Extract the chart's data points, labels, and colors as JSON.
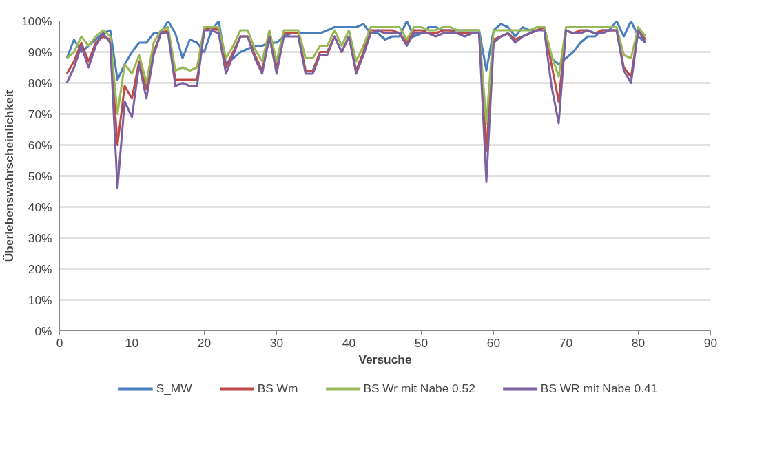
{
  "chart_data": {
    "type": "line",
    "xlabel": "Versuche",
    "ylabel": "Überlebenswahrscheinlichkeit",
    "xlim": [
      0,
      90
    ],
    "xticks": [
      0,
      10,
      20,
      30,
      40,
      50,
      60,
      70,
      80,
      90
    ],
    "ylim": [
      0,
      100
    ],
    "yticks": [
      {
        "value": 0,
        "label": "0%"
      },
      {
        "value": 10,
        "label": "10%"
      },
      {
        "value": 20,
        "label": "20%"
      },
      {
        "value": 30,
        "label": "30%"
      },
      {
        "value": 40,
        "label": "40%"
      },
      {
        "value": 50,
        "label": "50%"
      },
      {
        "value": 60,
        "label": "60%"
      },
      {
        "value": 70,
        "label": "70%"
      },
      {
        "value": 80,
        "label": "80%"
      },
      {
        "value": 90,
        "label": "90%"
      },
      {
        "value": 100,
        "label": "100%"
      }
    ],
    "grid": "y",
    "legend": "bottom",
    "marker": "none",
    "line_style": "solid",
    "x": [
      1,
      2,
      3,
      4,
      5,
      6,
      7,
      8,
      9,
      10,
      11,
      12,
      13,
      14,
      15,
      16,
      17,
      18,
      19,
      20,
      21,
      22,
      23,
      24,
      25,
      26,
      27,
      28,
      29,
      30,
      31,
      32,
      33,
      34,
      35,
      36,
      37,
      38,
      39,
      40,
      41,
      42,
      43,
      44,
      45,
      46,
      47,
      48,
      49,
      50,
      51,
      52,
      53,
      54,
      55,
      56,
      57,
      58,
      59,
      60,
      61,
      62,
      63,
      64,
      65,
      66,
      67,
      68,
      69,
      70,
      71,
      72,
      73,
      74,
      75,
      76,
      77,
      78,
      79,
      80,
      81
    ],
    "series": [
      {
        "name": "S_MW",
        "color": "#4a7ebb",
        "values": [
          88,
          94,
          90,
          92,
          94,
          96,
          97,
          81,
          86,
          90,
          93,
          93,
          96,
          96,
          100,
          96,
          88,
          94,
          93,
          90,
          97,
          100,
          86,
          88,
          90,
          91,
          92,
          92,
          93,
          93,
          95,
          96,
          96,
          96,
          96,
          96,
          97,
          98,
          98,
          98,
          98,
          99,
          96,
          96,
          94,
          95,
          95,
          100,
          95,
          96,
          98,
          98,
          97,
          97,
          97,
          97,
          97,
          97,
          84,
          97,
          99,
          98,
          95,
          98,
          97,
          97,
          98,
          88,
          86,
          88,
          90,
          93,
          95,
          95,
          97,
          97,
          100,
          95,
          100,
          95,
          93
        ]
      },
      {
        "name": "BS Wm",
        "color": "#be4b48",
        "values": [
          83,
          87,
          93,
          87,
          93,
          95,
          94,
          60,
          79,
          75,
          87,
          78,
          90,
          96,
          97,
          81,
          81,
          81,
          81,
          97,
          98,
          97,
          85,
          90,
          95,
          95,
          89,
          84,
          95,
          85,
          96,
          96,
          96,
          84,
          84,
          90,
          90,
          95,
          90,
          95,
          84,
          90,
          97,
          97,
          97,
          97,
          96,
          93,
          97,
          97,
          96,
          96,
          97,
          97,
          96,
          96,
          96,
          96,
          58,
          94,
          95,
          96,
          94,
          95,
          96,
          97,
          98,
          86,
          74,
          97,
          96,
          97,
          97,
          96,
          97,
          97,
          97,
          85,
          82,
          97,
          94
        ]
      },
      {
        "name": "BS Wr mit Nabe 0.52",
        "color": "#98b954",
        "values": [
          88,
          90,
          95,
          92,
          95,
          97,
          95,
          70,
          86,
          83,
          89,
          80,
          93,
          97,
          98,
          84,
          85,
          84,
          85,
          98,
          98,
          98,
          88,
          92,
          97,
          97,
          91,
          87,
          97,
          87,
          97,
          97,
          97,
          88,
          88,
          92,
          92,
          97,
          92,
          97,
          87,
          92,
          98,
          98,
          98,
          98,
          98,
          94,
          98,
          98,
          97,
          97,
          98,
          98,
          97,
          97,
          97,
          97,
          67,
          97,
          97,
          97,
          97,
          97,
          97,
          98,
          98,
          89,
          82,
          98,
          98,
          98,
          98,
          98,
          98,
          98,
          98,
          89,
          88,
          98,
          95
        ]
      },
      {
        "name": "BS WR mit Nabe 0.41",
        "color": "#7d60a0",
        "values": [
          80,
          85,
          92,
          85,
          92,
          96,
          93,
          46,
          74,
          69,
          86,
          75,
          89,
          96,
          96,
          79,
          80,
          79,
          79,
          97,
          97,
          96,
          83,
          89,
          95,
          95,
          88,
          83,
          95,
          83,
          95,
          95,
          95,
          83,
          83,
          89,
          89,
          95,
          90,
          95,
          83,
          89,
          96,
          97,
          96,
          96,
          96,
          92,
          96,
          96,
          96,
          95,
          96,
          96,
          96,
          95,
          96,
          96,
          48,
          93,
          95,
          96,
          93,
          95,
          96,
          97,
          97,
          79,
          67,
          97,
          96,
          96,
          97,
          96,
          96,
          97,
          97,
          84,
          80,
          97,
          93
        ]
      }
    ]
  }
}
